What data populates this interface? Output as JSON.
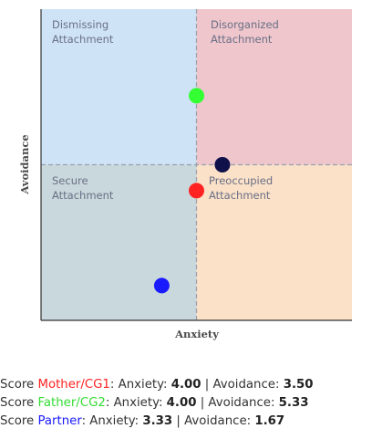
{
  "chart_data": {
    "type": "scatter",
    "xlabel": "Anxiety",
    "ylabel": "Avoidance",
    "xlim": [
      1,
      7
    ],
    "ylim": [
      1,
      7
    ],
    "grid": false,
    "quadrants": [
      {
        "id": "dismissing",
        "lines": [
          "Dismissing",
          "Attachment"
        ],
        "color": "#cfe3f6"
      },
      {
        "id": "disorganized",
        "lines": [
          "Disorganized",
          "Attachment"
        ],
        "color": "#eec6cc"
      },
      {
        "id": "secure",
        "lines": [
          "Secure",
          "Attachment"
        ],
        "color": "#c9d8dc"
      },
      {
        "id": "preoccupied",
        "lines": [
          "Preoccupied",
          "Attachment"
        ],
        "color": "#fae1c8"
      }
    ],
    "points": [
      {
        "label": "Father/CG2",
        "x": 4.0,
        "y": 5.33,
        "color": "#33ff33"
      },
      {
        "label": "Mother/CG1",
        "x": 4.0,
        "y": 3.5,
        "color": "#ff2222"
      },
      {
        "label": "Partner",
        "x": 3.33,
        "y": 1.67,
        "color": "#1a1aff"
      },
      {
        "label": "",
        "x": 4.5,
        "y": 4.0,
        "color": "#10104a"
      }
    ]
  },
  "scores": [
    {
      "prefix": "Score ",
      "name": "Mother/CG1",
      "color": "#ff2222",
      "anxiety_label": ": Anxiety: ",
      "anxiety": "4.00",
      "sep": " | Avoidance: ",
      "avoidance": "3.50"
    },
    {
      "prefix": "Score ",
      "name": "Father/CG2",
      "color": "#33dd33",
      "anxiety_label": ": Anxiety: ",
      "anxiety": "4.00",
      "sep": " | Avoidance: ",
      "avoidance": "5.33"
    },
    {
      "prefix": "Score ",
      "name": "Partner",
      "color": "#1a1aff",
      "anxiety_label": ": Anxiety: ",
      "anxiety": "3.33",
      "sep": " | Avoidance: ",
      "avoidance": "1.67"
    }
  ]
}
